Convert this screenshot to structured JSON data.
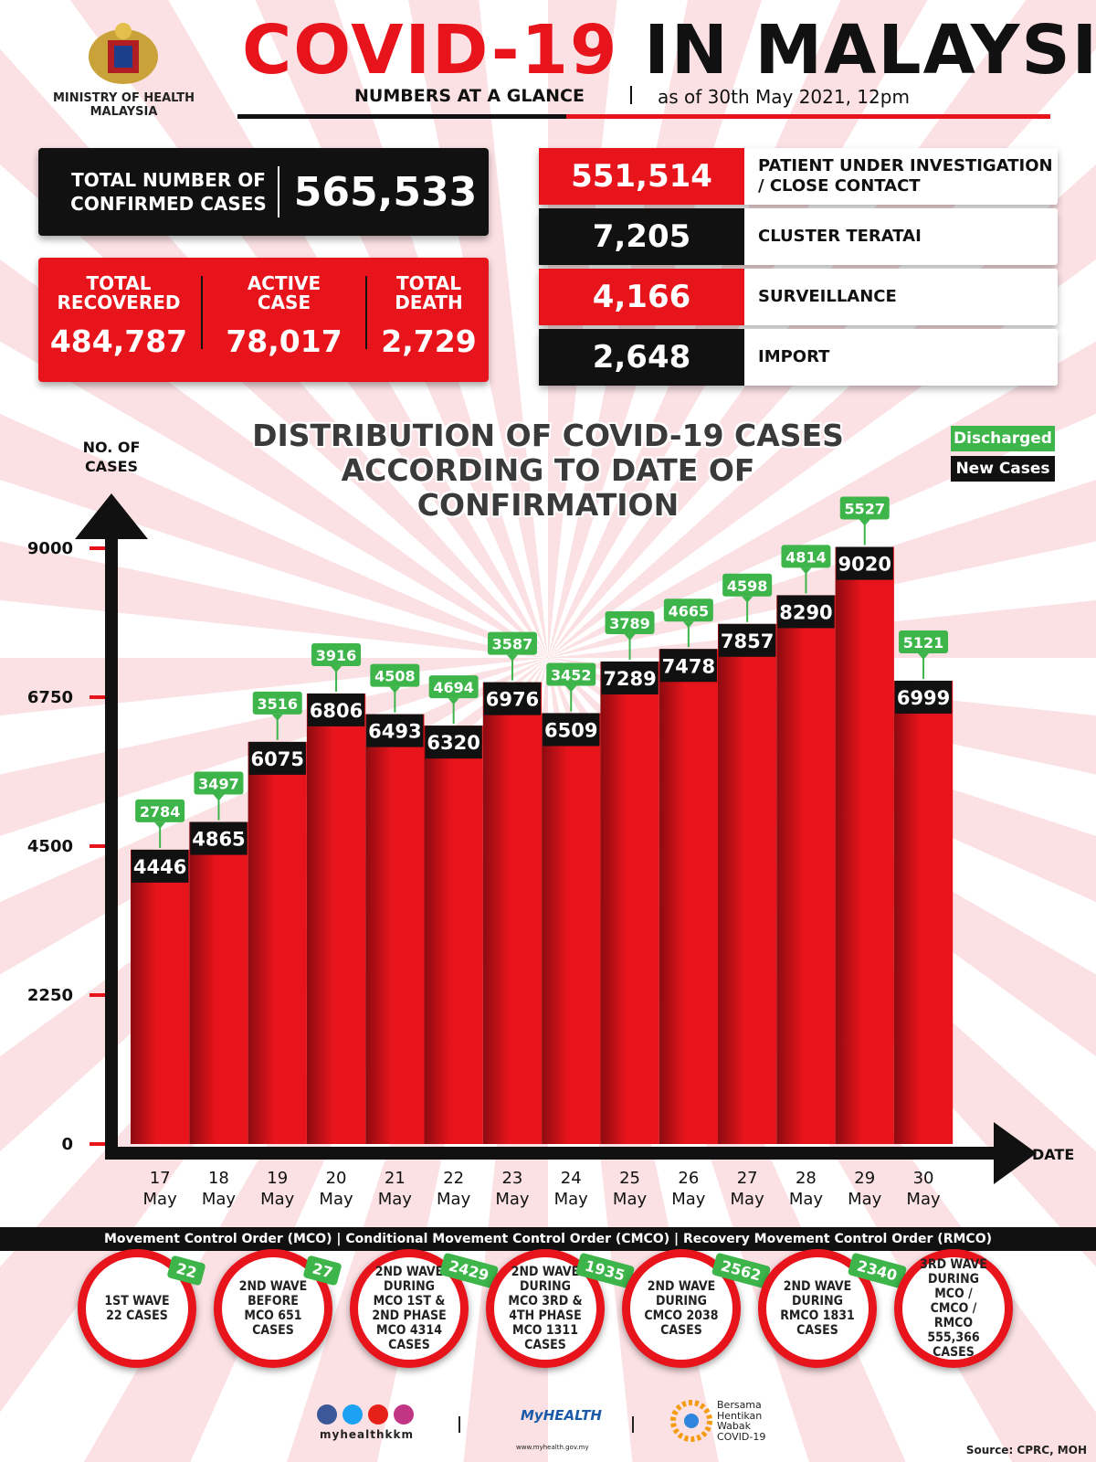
{
  "header": {
    "ministry": "MINISTRY OF HEALTH MALAYSIA",
    "title_red": "COVID-19",
    "title_black": "IN MALAYSIA",
    "subtitle": "NUMBERS AT A GLANCE",
    "as_of": "as of 30th May 2021, 12pm"
  },
  "summary": {
    "confirmed": {
      "label": "TOTAL NUMBER OF CONFIRMED CASES",
      "value": "565,533"
    },
    "recovered": {
      "label": "TOTAL RECOVERED",
      "value": "484,787"
    },
    "active": {
      "label": "ACTIVE CASE",
      "value": "78,017"
    },
    "death": {
      "label": "TOTAL DEATH",
      "value": "2,729"
    }
  },
  "sources": [
    {
      "value": "551,514",
      "label": "PATIENT UNDER INVESTIGATION / CLOSE CONTACT"
    },
    {
      "value": "7,205",
      "label": "CLUSTER TERATAI"
    },
    {
      "value": "4,166",
      "label": "SURVEILLANCE"
    },
    {
      "value": "2,648",
      "label": "IMPORT"
    }
  ],
  "chart_data": {
    "type": "bar",
    "title": "DISTRIBUTION OF COVID-19 CASES ACCORDING TO DATE OF CONFIRMATION",
    "y_label": "NO. OF CASES",
    "x_label": "DATE",
    "categories": [
      "17 May",
      "18 May",
      "19 May",
      "20 May",
      "21 May",
      "22 May",
      "23 May",
      "24 May",
      "25 May",
      "26 May",
      "27 May",
      "28 May",
      "29 May",
      "30 May"
    ],
    "series": [
      {
        "name": "Discharged",
        "color": "#3db54a",
        "values": [
          2784,
          3497,
          3516,
          3916,
          4508,
          4694,
          3587,
          3452,
          3789,
          4665,
          4598,
          4814,
          5527,
          5121
        ]
      },
      {
        "name": "New Cases",
        "color": "#e8141b",
        "values": [
          4446,
          4865,
          6075,
          6806,
          6493,
          6320,
          6976,
          6509,
          7289,
          7478,
          7857,
          8290,
          9020,
          6999
        ]
      }
    ],
    "ylim": [
      0,
      9000
    ],
    "yticks": [
      0,
      2250,
      4500,
      6750,
      9000
    ],
    "legend": "top-right"
  },
  "mco_bar": "Movement Control Order (MCO) | Conditional Movement Control Order (CMCO) | Recovery Movement Control Order (RMCO)",
  "waves": [
    {
      "label": "1ST WAVE 22 CASES",
      "badge": "22"
    },
    {
      "label": "2ND WAVE BEFORE MCO 651 CASES",
      "badge": "27"
    },
    {
      "label": "2ND WAVE DURING MCO 1ST & 2ND PHASE MCO 4314 CASES",
      "badge": "2429"
    },
    {
      "label": "2ND WAVE DURING MCO 3RD & 4TH PHASE MCO 1311 CASES",
      "badge": "1935"
    },
    {
      "label": "2ND WAVE DURING CMCO 2038 CASES",
      "badge": "2562"
    },
    {
      "label": "2ND WAVE DURING RMCO 1831 CASES",
      "badge": "2340"
    },
    {
      "label": "3RD WAVE DURING MCO / CMCO / RMCO 555,366 CASES"
    }
  ],
  "footer": {
    "social": "myhealthkkm",
    "myhealth": "MyHEALTH",
    "myhealth_url": "www.myhealth.gov.my",
    "campaign": "Bersama Hentikan Wabak COVID-19",
    "source": "Source: CPRC, MOH"
  }
}
